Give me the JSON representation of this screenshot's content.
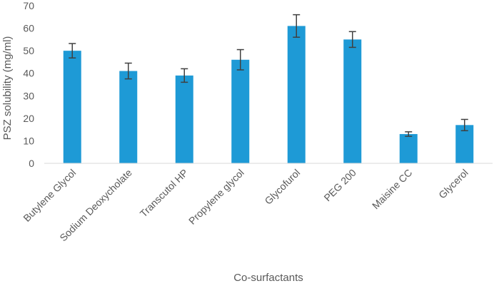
{
  "chart_data": {
    "type": "bar",
    "title": "",
    "xlabel": "Co-surfactants",
    "ylabel": "PSZ solubility (mg/ml)",
    "ylim": [
      0,
      70
    ],
    "yticks": [
      0,
      10,
      20,
      30,
      40,
      50,
      60,
      70
    ],
    "grid": false,
    "legend": "none",
    "categories": [
      "Butylene Glycol",
      "Sodium Deoxycholate",
      "Transcutol HP",
      "Propylene glycol",
      "Glycofurol",
      "PEG 200",
      "Maisine CC",
      "Glycerol"
    ],
    "values": [
      50,
      41,
      39,
      46,
      61,
      55,
      13,
      17
    ],
    "errors": [
      3.2,
      3.5,
      3,
      4.5,
      5,
      3.5,
      1,
      2.5
    ],
    "colors": {
      "bar": "#1e9ad6",
      "error_bar": "#404040",
      "axis": "#d9d9d9",
      "text": "#595959"
    }
  }
}
